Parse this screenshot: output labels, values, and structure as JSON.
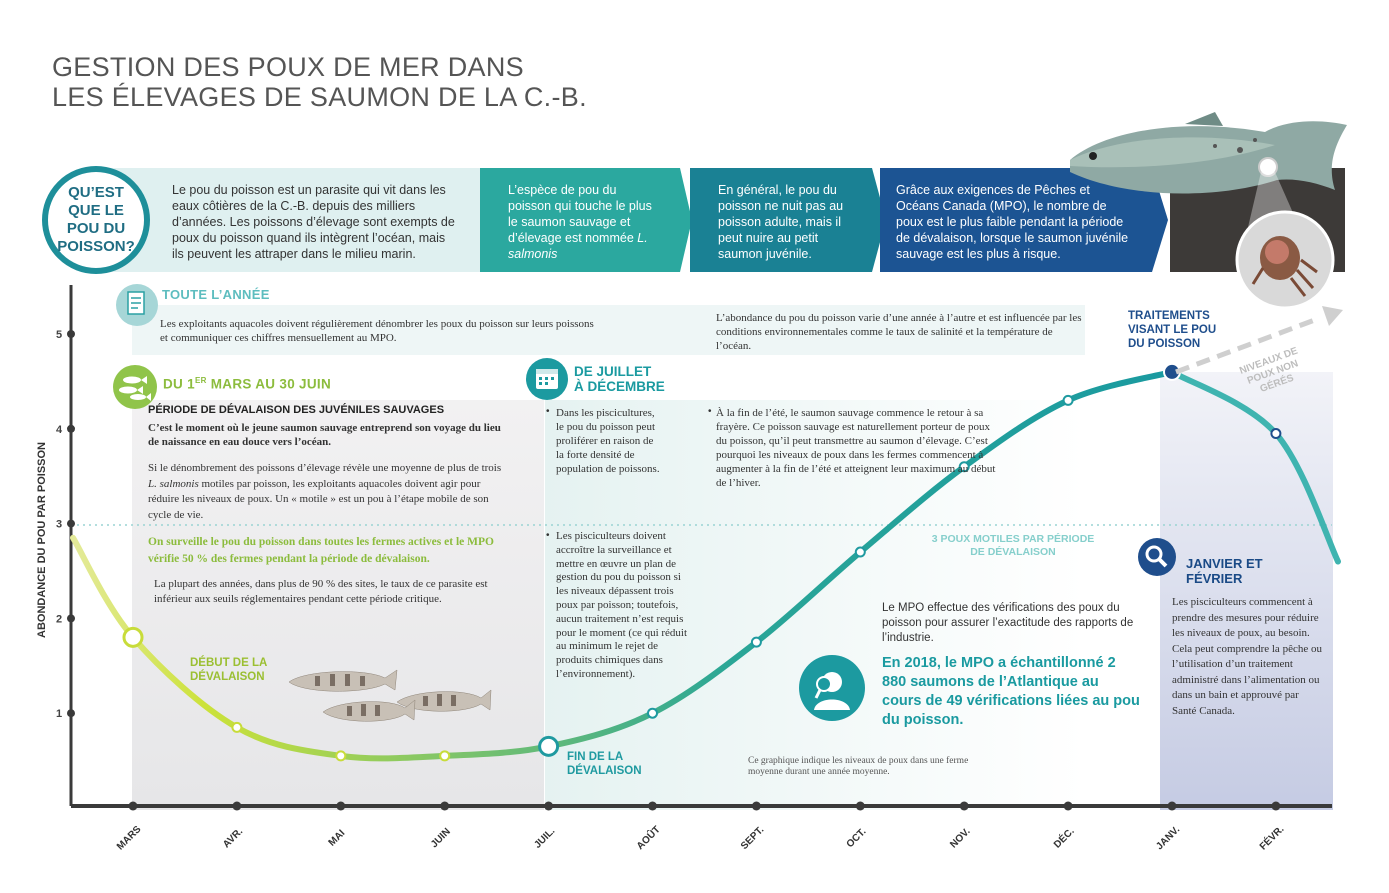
{
  "title": {
    "line1": "GESTION DES POUX DE MER DANS",
    "line2": "LES ÉLEVAGES DE SAUMON DE LA C.-B."
  },
  "intro": {
    "question": "QU’EST QUE LE POU DU POISSON?",
    "panel1": "Le pou du poisson est un parasite qui vit dans les eaux côtières de la C.-B. depuis des milliers d’années. Les poissons d’élevage sont exempts de poux du poisson quand ils intègrent l’océan, mais ils peuvent les attraper dans le milieu marin.",
    "panel2a": "L’espèce de pou du poisson qui touche le plus le saumon sauvage et d’élevage est nommée",
    "panel2b": "L. salmonis",
    "panel3": "En général, le pou du poisson ne nuit pas au poisson adulte, mais il peut nuire au petit saumon juvénile.",
    "panel4": "Grâce aux exigences de Pêches et Océans Canada (MPO), le nombre de poux est le plus faible pendant la période de dévalaison, lorsque le saumon juvénile sauvage est les plus à risque."
  },
  "year_round": {
    "heading": "TOUTE L’ANNÉE",
    "left": "Les exploitants aquacoles doivent régulièrement dénombrer les poux du poisson sur leurs poissons et communiquer ces chiffres mensuellement au MPO.",
    "right": "L’abondance du pou du poisson varie d’une année à l’autre et est influencée par les conditions environnementales comme le taux de salinité et la température de l’océan."
  },
  "spring": {
    "heading_a": "DU 1",
    "heading_sup": "ER",
    "heading_b": " MARS AU 30 JUIN",
    "subheading": "PÉRIODE DE DÉVALAISON DES JUVÉNILES SAUVAGES",
    "bold_text": "C’est le moment où le jeune saumon sauvage entreprend son voyage du lieu de naissance en eau douce vers l’océan.",
    "text1a": "Si le dénombrement des poissons d’élevage révèle une moyenne de plus de trois ",
    "text1_italic": "L. salmonis",
    "text1b": " motiles par poisson, les exploitants aquacoles doivent agir pour réduire les niveaux de poux. Un «    motile » est un pou à l’étape mobile de son cycle de vie.",
    "green_text": "On surveille le pou du poisson dans toutes les fermes actives et le MPO vérifie 50 % des fermes pendant la période de dévalaison.",
    "text2": "La plupart des années, dans plus de 90 % des sites, le taux de ce parasite est inférieur aux seuils réglementaires pendant cette période critique."
  },
  "summer": {
    "heading_line1": "DE JUILLET",
    "heading_line2": "À DÉCEMBRE",
    "col1_a": "Dans les piscicul­tures, le pou du poisson peut proliférer en raison de la forte densité de population de poissons.",
    "col1_b": "Les pisciculteurs doivent accroître la surveillance et mettre en œuvre un plan de gestion du pou du poisson si les niveaux dépassent trois poux par poisson; toutefois, aucun traitement n’est requis pour le moment (ce qui réduit au minimum le rejet de produits chimiques dans l’environnement).",
    "col2": "À la fin de l’été, le saumon sauvage commence le retour à sa frayère. Ce poisson sauvage est naturellement porteur de poux du poisson, qu’il peut transmettre au saumon d’élevage. C’est pourquoi les niveaux de poux dans les fermes commencent à augmenter à la fin de l’été et atteignent leur maximum au début de l’hiver."
  },
  "threshold_label": "3 POUX MOTILES PAR PÉRIODE DE DÉVALAISON",
  "dfo": {
    "text": "Le MPO effectue des vérifications des poux du poisson pour assurer l’exactitude des rapports de l’industrie.",
    "highlight": "En 2018, le MPO a échantillonné 2 880 saumons de l’Atlantique au cours de 49 vérifications liées au pou du poisson.",
    "note": "Ce graphique indique les niveaux de poux dans une ferme moyenne durant une année moyenne."
  },
  "winter": {
    "treatments": "TRAITEMENTS VISANT LE POU DU POISSON",
    "unmanaged": "NIVEAUX DE POUX NON GÉRÉS",
    "heading": "JANVIER ET FÉVRIER",
    "text": "Les pisciculteurs commencent à prendre des mesures pour réduire les niveaux de poux, au besoin. Cela peut comprendre la pêche ou l’utilisation d’un traitement administré dans l’alimentation ou dans un bain et approuvé par Santé Canada."
  },
  "labels": {
    "start_outmigration": "DÉBUT DE LA DÉVALAISON",
    "end_outmigration": "FIN DE LA DÉVALAISON"
  },
  "chart_data": {
    "type": "line",
    "ylabel": "ABONDANCE DU POU PAR POISSON",
    "xlabel": "",
    "categories": [
      "MARS",
      "AVR.",
      "MAI",
      "JUIN",
      "JUIL.",
      "AOÛT",
      "SEPT.",
      "OCT.",
      "NOV.",
      "DÉC.",
      "JANV.",
      "FÉVR."
    ],
    "yticks": [
      1,
      2,
      3,
      4,
      5
    ],
    "ylim": [
      0,
      5.5
    ],
    "threshold": 3,
    "series": [
      {
        "values": [
          1.8,
          0.85,
          0.55,
          0.55,
          0.65,
          1.0,
          1.75,
          2.7,
          3.6,
          4.3,
          4.6,
          3.95
        ]
      }
    ],
    "colors": {
      "start": "#d4e157",
      "mid": "#4fb596",
      "end": "#1a9aa0",
      "navy": "#1f4e8c"
    }
  }
}
